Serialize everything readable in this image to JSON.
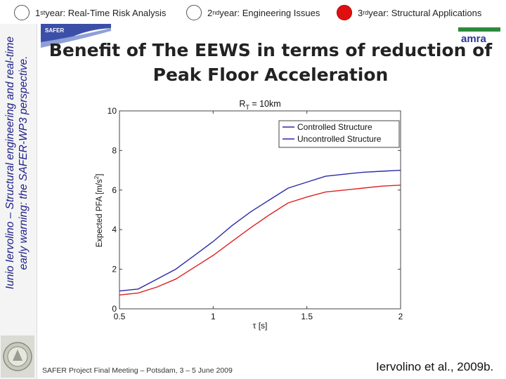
{
  "header": {
    "tabs": [
      {
        "prefix": "1",
        "sup": "st",
        "label": " year: Real-Time Risk Analysis",
        "active": false
      },
      {
        "prefix": "2",
        "sup": "nd",
        "label": " year: Engineering Issues",
        "active": false
      },
      {
        "prefix": "3",
        "sup": "rd",
        "label": " year: Structural Applications",
        "active": true
      }
    ]
  },
  "sidebar": {
    "line1": "Iunio Iervolino – Structural engineering and real-time",
    "line2": "early warning: the SAFER-WP3 perspective."
  },
  "logos": {
    "safer": "SAFER",
    "amra": "amra"
  },
  "slide": {
    "title_line1": "Benefit of The EEWS in terms of reduction of",
    "title_line2": "Peak Floor Acceleration"
  },
  "chart_data": {
    "type": "line",
    "title_prefix": "R",
    "title_sub": "T",
    "title_suffix": " = 10km",
    "xlabel_main": "τ [s]",
    "ylabel_main": "Expected PFA [m/s",
    "ylabel_sup": "2",
    "ylabel_end": "]",
    "xlim": [
      0.5,
      2
    ],
    "ylim": [
      0,
      10
    ],
    "xticks": [
      {
        "v": 0.5,
        "label": "0.5"
      },
      {
        "v": 1,
        "label": "1"
      },
      {
        "v": 1.5,
        "label": "1.5"
      },
      {
        "v": 2,
        "label": "2"
      }
    ],
    "yticks": [
      {
        "v": 0,
        "label": "0"
      },
      {
        "v": 2,
        "label": "2"
      },
      {
        "v": 4,
        "label": "4"
      },
      {
        "v": 6,
        "label": "6"
      },
      {
        "v": 8,
        "label": "8"
      },
      {
        "v": 10,
        "label": "10"
      }
    ],
    "x": [
      0.5,
      0.6,
      0.7,
      0.8,
      0.9,
      1.0,
      1.1,
      1.2,
      1.3,
      1.4,
      1.5,
      1.6,
      1.7,
      1.8,
      1.9,
      2.0
    ],
    "series": [
      {
        "name": "Controlled Structure",
        "color": "#2a2aa8",
        "values": [
          0.9,
          1.0,
          1.5,
          2.0,
          2.7,
          3.4,
          4.2,
          4.9,
          5.5,
          6.1,
          6.4,
          6.7,
          6.8,
          6.9,
          6.95,
          7.0
        ]
      },
      {
        "name": "Uncontrolled Structure",
        "color": "#dd2020",
        "values": [
          0.7,
          0.8,
          1.1,
          1.5,
          2.1,
          2.7,
          3.4,
          4.1,
          4.75,
          5.35,
          5.65,
          5.9,
          6.0,
          6.1,
          6.2,
          6.25
        ]
      }
    ],
    "legend": [
      "Controlled Structure",
      "Uncontrolled Structure"
    ]
  },
  "footer": {
    "meeting": "SAFER Project Final Meeting – Potsdam, 3 – 5 June 2009",
    "credit": "Iervolino et al., 2009b."
  }
}
